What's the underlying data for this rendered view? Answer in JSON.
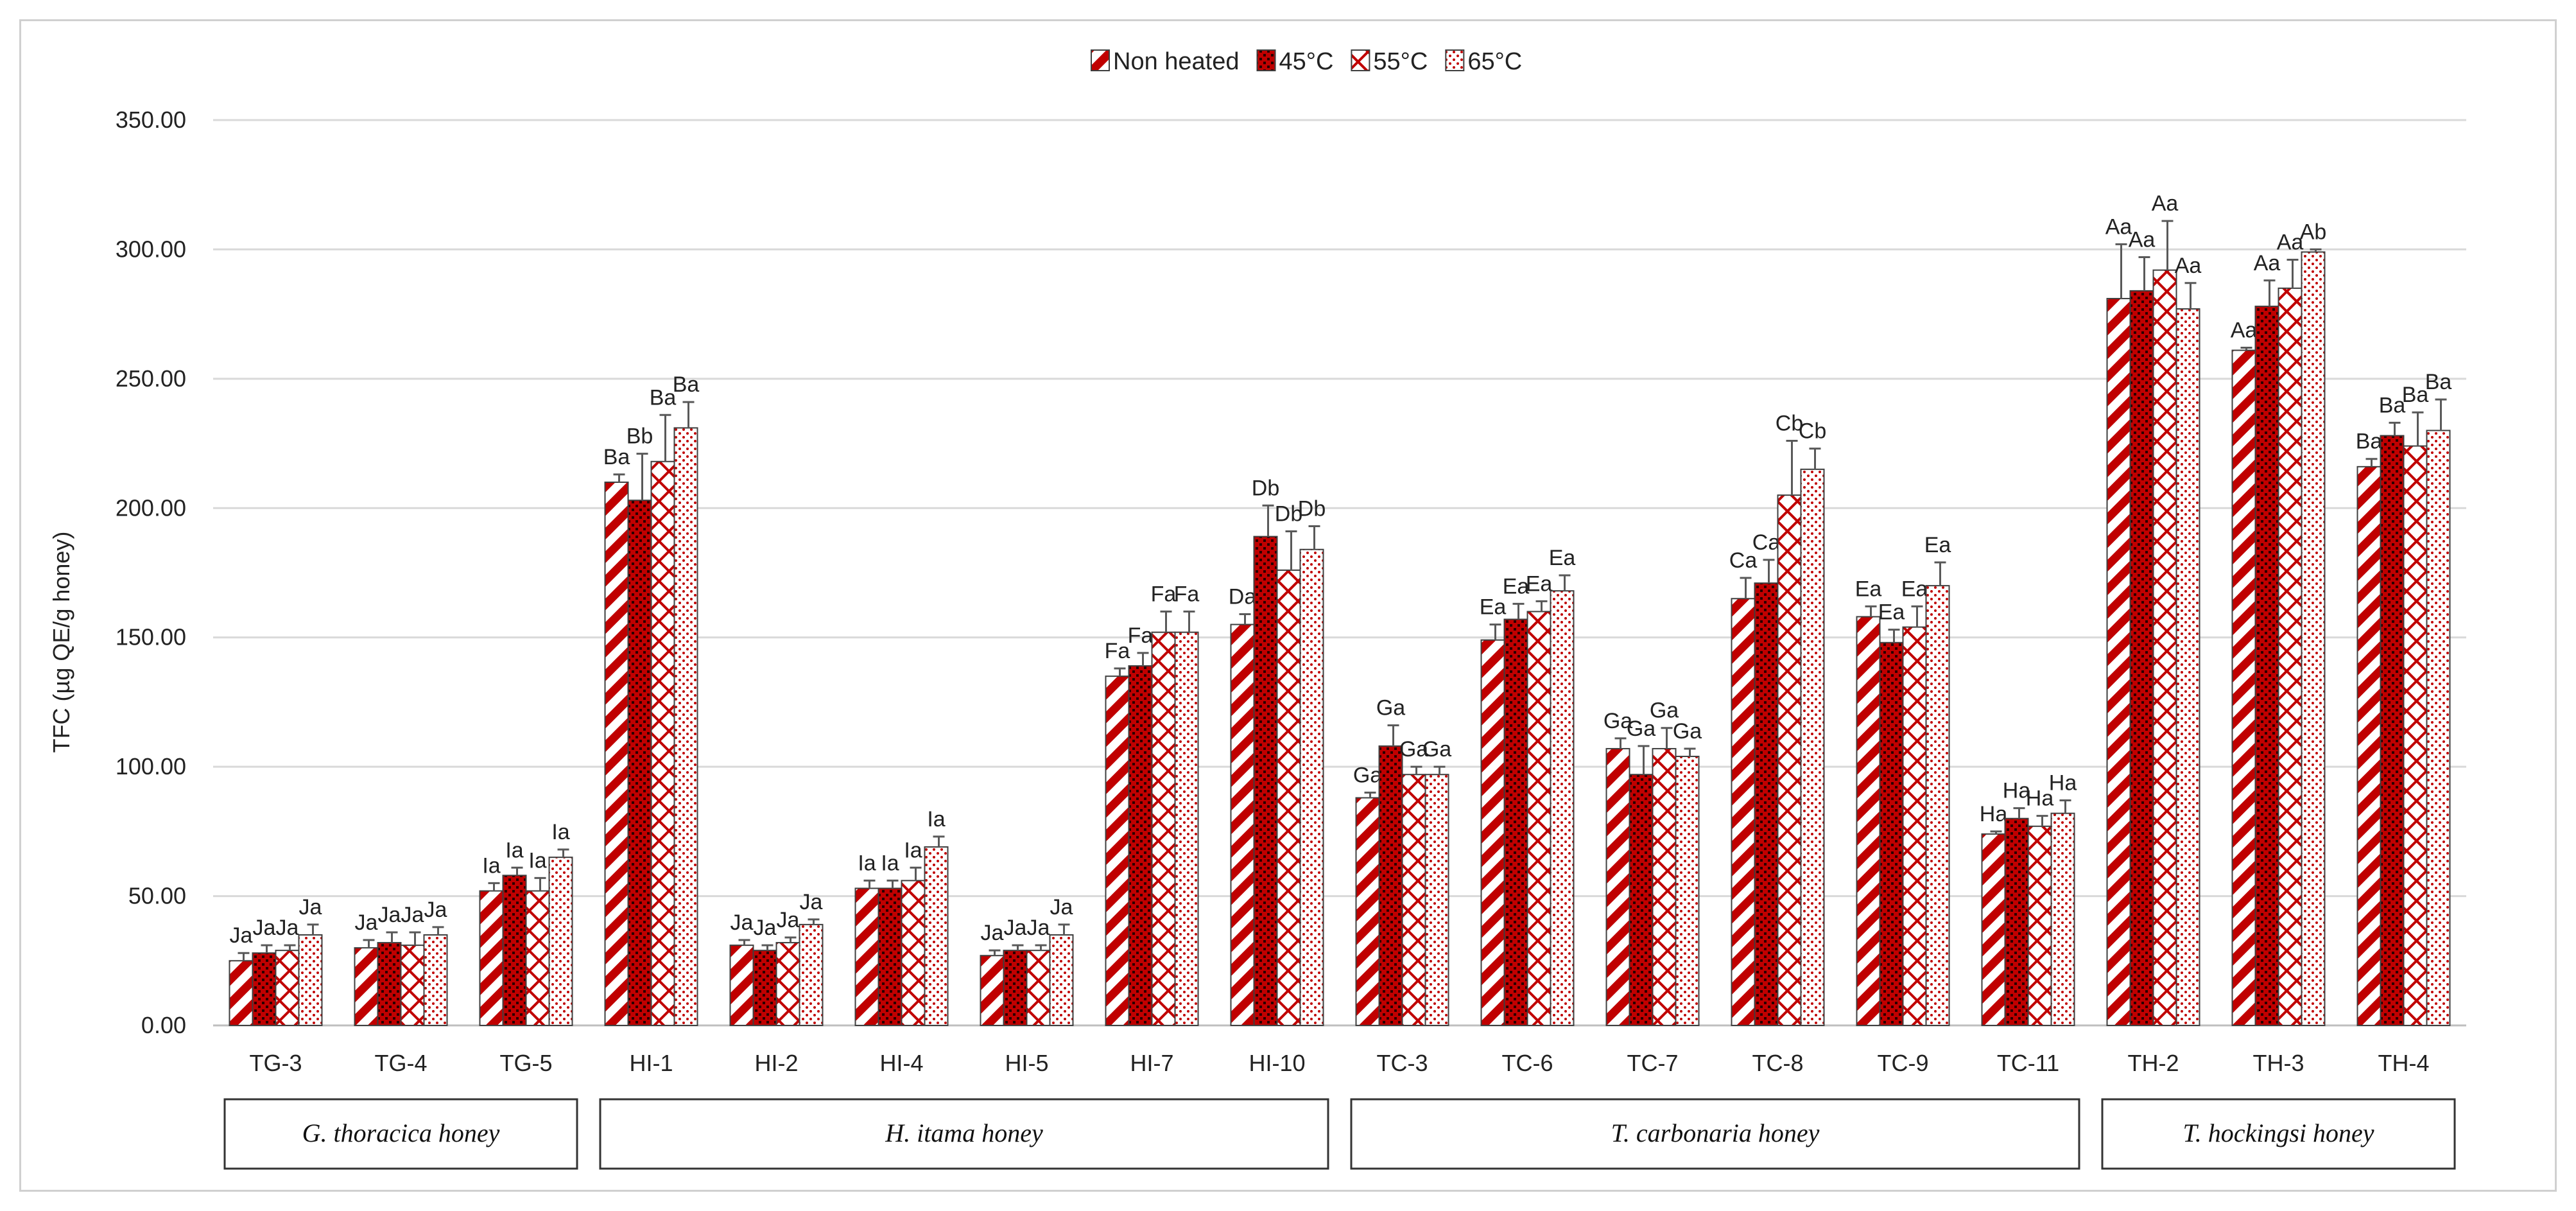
{
  "chart_data": {
    "type": "bar",
    "title": "",
    "ylabel": "TFC (µg QE/g honey)",
    "xlabel": "",
    "ylim": [
      0,
      350
    ],
    "yticks": [
      "0.00",
      "50.00",
      "100.00",
      "150.00",
      "200.00",
      "250.00",
      "300.00",
      "350.00"
    ],
    "grid": "horizontal",
    "legend_position": "top-center",
    "categories": [
      "TG-3",
      "TG-4",
      "TG-5",
      "HI-1",
      "HI-2",
      "HI-4",
      "HI-5",
      "HI-7",
      "HI-10",
      "TC-3",
      "TC-6",
      "TC-7",
      "TC-8",
      "TC-9",
      "TC-11",
      "TH-2",
      "TH-3",
      "TH-4"
    ],
    "groups": [
      {
        "label": "G. thoracica honey",
        "count": 3
      },
      {
        "label": "H. itama honey",
        "count": 6
      },
      {
        "label": "T. carbonaria honey",
        "count": 6
      },
      {
        "label": "T. hockingsi honey",
        "count": 3
      }
    ],
    "series": [
      {
        "name": "Non heated",
        "pattern": "diagonal",
        "values": [
          25,
          30,
          52,
          210,
          31,
          53,
          27,
          135,
          155,
          88,
          149,
          107,
          165,
          158,
          74,
          281,
          261,
          216
        ],
        "errors": [
          3,
          3,
          3,
          3,
          2,
          3,
          2,
          3,
          4,
          2,
          6,
          4,
          8,
          4,
          1,
          21,
          1,
          3
        ],
        "labels": [
          "Ja",
          "Ja",
          "Ia",
          "Ba",
          "Ja",
          "Ia",
          "Ja",
          "Fa",
          "Da",
          "Ga",
          "Ea",
          "Ga",
          "Ca",
          "Ea",
          "Ha",
          "Aa",
          "Aa",
          "Ba"
        ]
      },
      {
        "name": "45°C",
        "pattern": "checker",
        "values": [
          28,
          32,
          58,
          203,
          29,
          53,
          29,
          139,
          189,
          108,
          157,
          97,
          171,
          148,
          80,
          284,
          278,
          228
        ],
        "errors": [
          3,
          4,
          3,
          18,
          2,
          3,
          2,
          5,
          12,
          8,
          6,
          11,
          9,
          5,
          4,
          13,
          10,
          5
        ],
        "labels": [
          "Ja",
          "Ja",
          "Ia",
          "Bb",
          "Ja",
          "Ia",
          "Ja",
          "Fa",
          "Db",
          "Ga",
          "Ea",
          "Ga",
          "Ca",
          "Ea",
          "Ha",
          "Aa",
          "Aa",
          "Ba"
        ]
      },
      {
        "name": "55°C",
        "pattern": "crosshatch",
        "values": [
          29,
          31,
          52,
          218,
          32,
          56,
          29,
          152,
          176,
          97,
          160,
          107,
          205,
          154,
          77,
          292,
          285,
          224
        ],
        "errors": [
          2,
          5,
          5,
          18,
          2,
          5,
          2,
          8,
          15,
          3,
          4,
          8,
          21,
          8,
          4,
          19,
          11,
          13
        ],
        "labels": [
          "Ja",
          "Ja",
          "Ia",
          "Ba",
          "Ja",
          "Ia",
          "Ja",
          "Fa",
          "Db",
          "Ga",
          "Ea",
          "Ga",
          "Cb",
          "Ea",
          "Ha",
          "Aa",
          "Aa",
          "Ba"
        ]
      },
      {
        "name": "65°C",
        "pattern": "dots",
        "values": [
          35,
          35,
          65,
          231,
          39,
          69,
          35,
          152,
          184,
          97,
          168,
          104,
          215,
          170,
          82,
          277,
          299,
          230
        ],
        "errors": [
          4,
          3,
          3,
          10,
          2,
          4,
          4,
          8,
          9,
          3,
          6,
          3,
          8,
          9,
          5,
          10,
          1,
          12
        ],
        "labels": [
          "Ja",
          "Ja",
          "Ia",
          "Ba",
          "Ja",
          "Ia",
          "Ja",
          "Fa",
          "Db",
          "Ga",
          "Ea",
          "Ga",
          "Cb",
          "Ea",
          "Ha",
          "Aa",
          "Ab",
          "Ba"
        ]
      }
    ]
  },
  "colors": {
    "bar_red": "#c00000",
    "bar_outline": "#3f3f3f",
    "grid": "#d9d9d9",
    "error_bar": "#595959"
  }
}
